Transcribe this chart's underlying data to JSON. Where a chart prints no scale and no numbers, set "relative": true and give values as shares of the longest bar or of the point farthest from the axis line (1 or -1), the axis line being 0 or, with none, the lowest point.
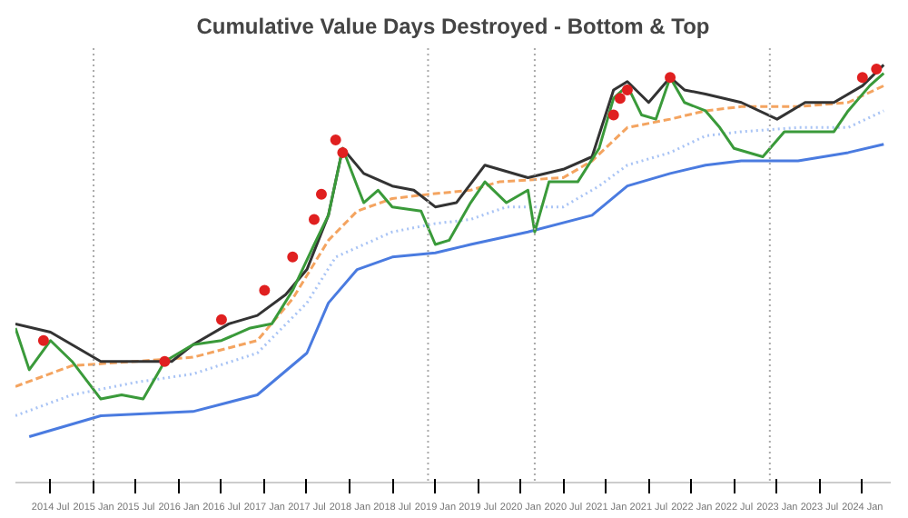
{
  "chart_data": {
    "type": "line",
    "title": "Cumulative Value Days Destroyed - Bottom & Top",
    "relative": true,
    "xlim": [
      "2014-02",
      "2024-05"
    ],
    "xticks": [
      {
        "value": "2014-07",
        "label": "2014 Jul"
      },
      {
        "value": "2015-01",
        "label": "2015 Jan"
      },
      {
        "value": "2015-07",
        "label": "2015 Jul"
      },
      {
        "value": "2016-01",
        "label": "2016 Jan"
      },
      {
        "value": "2016-07",
        "label": "2016 Jul"
      },
      {
        "value": "2017-01",
        "label": "2017 Jan"
      },
      {
        "value": "2017-07",
        "label": "2017 Jul"
      },
      {
        "value": "2018-01",
        "label": "2018 Jan"
      },
      {
        "value": "2018-07",
        "label": "2018 Jul"
      },
      {
        "value": "2019-01",
        "label": "2019 Jan"
      },
      {
        "value": "2019-07",
        "label": "2019 Jul"
      },
      {
        "value": "2020-01",
        "label": "2020 Jan"
      },
      {
        "value": "2020-07",
        "label": "2020 Jul"
      },
      {
        "value": "2021-01",
        "label": "2021 Jan"
      },
      {
        "value": "2021-07",
        "label": "2021 Jul"
      },
      {
        "value": "2022-01",
        "label": "2022 Jan"
      },
      {
        "value": "2022-07",
        "label": "2022 Jul"
      },
      {
        "value": "2023-01",
        "label": "2023 Jan"
      },
      {
        "value": "2023-07",
        "label": "2023 Jul"
      },
      {
        "value": "2024-01",
        "label": "2024 Jan"
      }
    ],
    "ref_lines": [
      {
        "axis": "x",
        "value": "2015-01",
        "color": "#aaaaaa",
        "line_style": "dotted"
      },
      {
        "axis": "x",
        "value": "2018-12",
        "color": "#aaaaaa",
        "line_style": "dotted"
      },
      {
        "axis": "x",
        "value": "2020-03",
        "color": "#aaaaaa",
        "line_style": "dotted"
      },
      {
        "axis": "x",
        "value": "2022-12",
        "color": "#aaaaaa",
        "line_style": "dotted"
      }
    ],
    "series": [
      {
        "color": "#4a7be0",
        "line_style": "solid",
        "x": [
          "2014-04",
          "2015-02",
          "2016-03",
          "2016-12",
          "2017-07",
          "2017-10",
          "2018-02",
          "2018-07",
          "2019-01",
          "2019-06",
          "2020-02",
          "2020-11",
          "2021-04",
          "2021-10",
          "2022-03",
          "2022-08",
          "2023-04",
          "2023-11",
          "2024-04"
        ],
        "values": [
          0.11,
          0.16,
          0.17,
          0.21,
          0.31,
          0.43,
          0.51,
          0.54,
          0.55,
          0.57,
          0.6,
          0.64,
          0.71,
          0.74,
          0.76,
          0.77,
          0.77,
          0.79,
          0.81
        ]
      },
      {
        "color": "#a9c4f5",
        "line_style": "dotted",
        "x": [
          "2014-02",
          "2014-10",
          "2015-07",
          "2016-03",
          "2016-12",
          "2017-07",
          "2017-11",
          "2018-07",
          "2019-01",
          "2019-06",
          "2019-11",
          "2020-07",
          "2020-12",
          "2021-04",
          "2021-10",
          "2022-03",
          "2022-08",
          "2023-04",
          "2023-11",
          "2024-04"
        ],
        "values": [
          0.16,
          0.21,
          0.24,
          0.26,
          0.31,
          0.43,
          0.54,
          0.6,
          0.62,
          0.63,
          0.66,
          0.66,
          0.71,
          0.76,
          0.79,
          0.83,
          0.84,
          0.85,
          0.85,
          0.89
        ]
      },
      {
        "color": "#f4a460",
        "line_style": "dashed",
        "x": [
          "2014-02",
          "2014-10",
          "2015-07",
          "2016-03",
          "2016-12",
          "2017-05",
          "2017-10",
          "2018-02",
          "2018-07",
          "2018-12",
          "2019-06",
          "2019-10",
          "2020-07",
          "2020-11",
          "2021-04",
          "2021-10",
          "2022-03",
          "2022-08",
          "2023-04",
          "2023-11",
          "2024-04"
        ],
        "values": [
          0.23,
          0.28,
          0.29,
          0.3,
          0.34,
          0.44,
          0.58,
          0.65,
          0.68,
          0.69,
          0.7,
          0.72,
          0.73,
          0.77,
          0.85,
          0.87,
          0.89,
          0.9,
          0.9,
          0.91,
          0.95
        ]
      },
      {
        "color": "#333333",
        "line_style": "solid",
        "x": [
          "2014-02",
          "2014-07",
          "2015-02",
          "2015-07",
          "2015-12",
          "2016-03",
          "2016-08",
          "2016-12",
          "2017-04",
          "2017-07",
          "2017-10",
          "2017-12",
          "2018-03",
          "2018-07",
          "2018-10",
          "2019-01",
          "2019-04",
          "2019-08",
          "2020-02",
          "2020-07",
          "2020-11",
          "2021-02",
          "2021-04",
          "2021-07",
          "2021-10",
          "2021-12",
          "2022-03",
          "2022-08",
          "2023-01",
          "2023-05",
          "2023-09",
          "2024-01",
          "2024-04"
        ],
        "values": [
          0.38,
          0.36,
          0.29,
          0.29,
          0.29,
          0.33,
          0.38,
          0.4,
          0.45,
          0.51,
          0.64,
          0.8,
          0.74,
          0.71,
          0.7,
          0.66,
          0.67,
          0.76,
          0.73,
          0.75,
          0.78,
          0.94,
          0.96,
          0.91,
          0.97,
          0.94,
          0.93,
          0.91,
          0.87,
          0.91,
          0.91,
          0.95,
          1.0
        ]
      },
      {
        "color": "#3a9a3a",
        "line_style": "solid",
        "x": [
          "2014-02",
          "2014-04",
          "2014-07",
          "2014-10",
          "2015-02",
          "2015-05",
          "2015-08",
          "2015-11",
          "2016-03",
          "2016-07",
          "2016-11",
          "2017-02",
          "2017-05",
          "2017-08",
          "2017-10",
          "2017-12",
          "2018-02",
          "2018-03",
          "2018-05",
          "2018-07",
          "2018-11",
          "2019-01",
          "2019-03",
          "2019-06",
          "2019-08",
          "2019-11",
          "2020-02",
          "2020-03",
          "2020-05",
          "2020-09",
          "2020-12",
          "2021-02",
          "2021-04",
          "2021-06",
          "2021-08",
          "2021-10",
          "2021-12",
          "2022-03",
          "2022-05",
          "2022-07",
          "2022-11",
          "2023-02",
          "2023-09",
          "2023-11",
          "2024-02",
          "2024-04"
        ],
        "values": [
          0.37,
          0.27,
          0.34,
          0.29,
          0.2,
          0.21,
          0.2,
          0.29,
          0.33,
          0.34,
          0.37,
          0.38,
          0.46,
          0.57,
          0.64,
          0.8,
          0.71,
          0.67,
          0.7,
          0.66,
          0.65,
          0.57,
          0.58,
          0.67,
          0.72,
          0.67,
          0.7,
          0.6,
          0.72,
          0.72,
          0.8,
          0.92,
          0.95,
          0.88,
          0.87,
          0.97,
          0.91,
          0.89,
          0.85,
          0.8,
          0.78,
          0.84,
          0.84,
          0.89,
          0.95,
          0.98
        ]
      },
      {
        "type": "scatter",
        "color": "#e02020",
        "marker": "circle",
        "x": [
          "2014-06",
          "2015-11",
          "2016-07",
          "2017-01",
          "2017-05",
          "2017-08",
          "2017-09",
          "2017-11",
          "2017-12",
          "2021-02",
          "2021-03",
          "2021-04",
          "2021-10",
          "2024-01",
          "2024-03"
        ],
        "values": [
          0.34,
          0.29,
          0.39,
          0.46,
          0.54,
          0.63,
          0.69,
          0.82,
          0.79,
          0.88,
          0.92,
          0.94,
          0.97,
          0.97,
          0.99
        ]
      }
    ]
  }
}
